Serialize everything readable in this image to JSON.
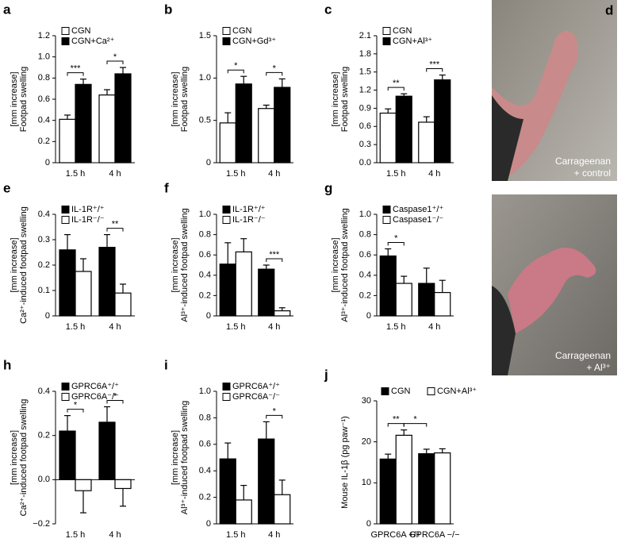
{
  "chart_data": [
    {
      "type": "bar",
      "panel": "a",
      "ylabel": [
        "Footpad swelling",
        "[mm increase]"
      ],
      "categories": [
        "1.5 h",
        "4 h"
      ],
      "series": [
        {
          "name": "CGN",
          "color": "#ffffff",
          "values": [
            0.41,
            0.64
          ],
          "errors": [
            0.04,
            0.05
          ]
        },
        {
          "name": "CGN+Ca²⁺",
          "color": "#000000",
          "values": [
            0.74,
            0.84
          ],
          "errors": [
            0.05,
            0.06
          ]
        }
      ],
      "ylim": [
        0,
        1.2
      ],
      "yticks": [
        0,
        0.2,
        0.4,
        0.6,
        0.8,
        {
          "value": 1,
          "label": "1.0"
        },
        1.2
      ],
      "annotations": [
        {
          "label": "***",
          "between": [
            [
              0,
              0
            ],
            [
              0,
              1
            ]
          ]
        },
        {
          "label": "*",
          "between": [
            [
              1,
              0
            ],
            [
              1,
              1
            ]
          ]
        }
      ]
    },
    {
      "type": "bar",
      "panel": "b",
      "ylabel": [
        "Footpad swelling",
        "[mm increase]"
      ],
      "categories": [
        "1.5 h",
        "4 h"
      ],
      "series": [
        {
          "name": "CGN",
          "color": "#ffffff",
          "values": [
            0.47,
            0.64
          ],
          "errors": [
            0.12,
            0.04
          ]
        },
        {
          "name": "CGN+Gd³⁺",
          "color": "#000000",
          "values": [
            0.93,
            0.89
          ],
          "errors": [
            0.09,
            0.1
          ]
        }
      ],
      "ylim": [
        0,
        1.5
      ],
      "yticks": [
        0,
        0.5,
        {
          "value": 1,
          "label": "1.0"
        },
        1.5
      ],
      "annotations": [
        {
          "label": "*",
          "between": [
            [
              0,
              0
            ],
            [
              0,
              1
            ]
          ]
        },
        {
          "label": "*",
          "between": [
            [
              1,
              0
            ],
            [
              1,
              1
            ]
          ]
        }
      ]
    },
    {
      "type": "bar",
      "panel": "c",
      "ylabel": [
        "Footpad swelling",
        "[mm increase]"
      ],
      "categories": [
        "1.5 h",
        "4 h"
      ],
      "series": [
        {
          "name": "CGN",
          "color": "#ffffff",
          "values": [
            0.82,
            0.67
          ],
          "errors": [
            0.07,
            0.09
          ]
        },
        {
          "name": "CGN+Al³⁺",
          "color": "#000000",
          "values": [
            1.1,
            1.37
          ],
          "errors": [
            0.04,
            0.08
          ]
        }
      ],
      "ylim": [
        0,
        2.1
      ],
      "yticks": [
        {
          "value": 0,
          "label": "0.0"
        },
        0.3,
        0.6,
        0.9,
        1.2,
        1.5,
        1.8,
        2.1
      ],
      "annotations": [
        {
          "label": "**",
          "between": [
            [
              0,
              0
            ],
            [
              0,
              1
            ]
          ]
        },
        {
          "label": "***",
          "between": [
            [
              1,
              0
            ],
            [
              1,
              1
            ]
          ]
        }
      ]
    },
    {
      "type": "bar",
      "panel": "e",
      "ylabel": [
        "Ca²⁺-induced footpad swelling",
        "[mm increase]"
      ],
      "categories": [
        "1.5 h",
        "4 h"
      ],
      "series": [
        {
          "name": "IL-1R⁺/⁺",
          "color": "#000000",
          "values": [
            0.26,
            0.27
          ],
          "errors": [
            0.06,
            0.05
          ]
        },
        {
          "name": "IL-1R⁻/⁻",
          "color": "#ffffff",
          "values": [
            0.175,
            0.09
          ],
          "errors": [
            0.05,
            0.035
          ]
        }
      ],
      "ylim": [
        0,
        0.4
      ],
      "yticks": [
        0,
        0.1,
        0.2,
        0.3,
        0.4
      ],
      "annotations": [
        {
          "label": "**",
          "between": [
            [
              1,
              0
            ],
            [
              1,
              1
            ]
          ]
        }
      ]
    },
    {
      "type": "bar",
      "panel": "f",
      "ylabel": [
        "Al³⁺-induced footpad swelling",
        "[mm increase]"
      ],
      "categories": [
        "1.5 h",
        "4 h"
      ],
      "series": [
        {
          "name": "IL-1R⁺/⁺",
          "color": "#000000",
          "values": [
            0.51,
            0.46
          ],
          "errors": [
            0.21,
            0.04
          ]
        },
        {
          "name": "IL-1R⁻/⁻",
          "color": "#ffffff",
          "values": [
            0.63,
            0.05
          ],
          "errors": [
            0.13,
            0.03
          ]
        }
      ],
      "ylim": [
        0,
        1
      ],
      "yticks": [
        0,
        0.2,
        0.4,
        0.6,
        0.8,
        {
          "value": 1,
          "label": "1.0"
        }
      ],
      "annotations": [
        {
          "label": "***",
          "between": [
            [
              1,
              0
            ],
            [
              1,
              1
            ]
          ]
        }
      ]
    },
    {
      "type": "bar",
      "panel": "g",
      "ylabel": [
        "Al³⁺-induced footpad swelling",
        "[mm increase]"
      ],
      "categories": [
        "1.5 h",
        "4 h"
      ],
      "series": [
        {
          "name": "Caspase1⁺/⁺",
          "color": "#000000",
          "values": [
            0.59,
            0.32
          ],
          "errors": [
            0.07,
            0.15
          ]
        },
        {
          "name": "Caspase1⁻/⁻",
          "color": "#ffffff",
          "values": [
            0.32,
            0.23
          ],
          "errors": [
            0.07,
            0.12
          ]
        }
      ],
      "ylim": [
        0,
        1
      ],
      "yticks": [
        0,
        0.2,
        0.4,
        0.6,
        0.8,
        {
          "value": 1,
          "label": "1.0"
        }
      ],
      "annotations": [
        {
          "label": "*",
          "between": [
            [
              0,
              0
            ],
            [
              0,
              1
            ]
          ]
        }
      ]
    },
    {
      "type": "bar",
      "panel": "h",
      "ylabel": [
        "Ca²⁺-induced footpad swelling",
        "[mm increase]"
      ],
      "categories": [
        "1.5 h",
        "4 h"
      ],
      "series": [
        {
          "name": "GPRC6A⁺/⁺",
          "color": "#000000",
          "values": [
            0.22,
            0.26
          ],
          "errors": [
            0.07,
            0.07
          ]
        },
        {
          "name": "GPRC6A⁻/⁻",
          "color": "#ffffff",
          "values": [
            -0.05,
            -0.04
          ],
          "errors": [
            0.1,
            0.08
          ]
        }
      ],
      "ylim": [
        -0.2,
        0.4
      ],
      "yticks": [
        {
          "value": -0.2,
          "label": "−0.2"
        },
        {
          "value": 0,
          "label": "0.0"
        },
        0.2,
        0.4
      ],
      "annotations": [
        {
          "label": "*",
          "between": [
            [
              0,
              0
            ],
            [
              0,
              1
            ]
          ]
        },
        {
          "label": "*",
          "between": [
            [
              1,
              0
            ],
            [
              1,
              1
            ]
          ]
        }
      ]
    },
    {
      "type": "bar",
      "panel": "i",
      "ylabel": [
        "Al³⁺-induced footpad swelling",
        "[mm increase]"
      ],
      "categories": [
        "1.5 h",
        "4 h"
      ],
      "series": [
        {
          "name": "GPRC6A⁺/⁺",
          "color": "#000000",
          "values": [
            0.49,
            0.64
          ],
          "errors": [
            0.12,
            0.13
          ]
        },
        {
          "name": "GPRC6A⁻/⁻",
          "color": "#ffffff",
          "values": [
            0.18,
            0.22
          ],
          "errors": [
            0.11,
            0.11
          ]
        }
      ],
      "ylim": [
        0,
        1
      ],
      "yticks": [
        0,
        0.2,
        0.4,
        0.6,
        0.8,
        {
          "value": 1,
          "label": "1.0"
        }
      ],
      "annotations": [
        {
          "label": "*",
          "between": [
            [
              1,
              0
            ],
            [
              1,
              1
            ]
          ]
        }
      ]
    },
    {
      "type": "bar",
      "panel": "j",
      "ylabel": [
        "Mouse IL-1β (pg paw⁻¹)"
      ],
      "categories": [
        "GPRC6A +/+",
        "GPRC6A −/−"
      ],
      "series": [
        {
          "name": "CGN",
          "color": "#000000",
          "values": [
            15.8,
            17.1
          ],
          "errors": [
            1.2,
            1.1
          ]
        },
        {
          "name": "CGN+Al³⁺",
          "color": "#ffffff",
          "values": [
            21.6,
            17.3
          ],
          "errors": [
            1.3,
            1.0
          ]
        }
      ],
      "ylim": [
        0,
        30
      ],
      "yticks": [
        0,
        10,
        20,
        30
      ],
      "legend": "top-inline",
      "annotations": [
        {
          "label": "**",
          "between": [
            [
              0,
              0
            ],
            [
              0,
              1
            ]
          ]
        },
        {
          "label": "*",
          "between": [
            [
              0,
              1
            ],
            [
              1,
              0
            ]
          ]
        }
      ]
    }
  ],
  "photos": {
    "panel": "d",
    "captions": [
      [
        "Carrageenan",
        "+ control"
      ],
      [
        "Carrageenan",
        "+ Al³⁺"
      ]
    ]
  }
}
